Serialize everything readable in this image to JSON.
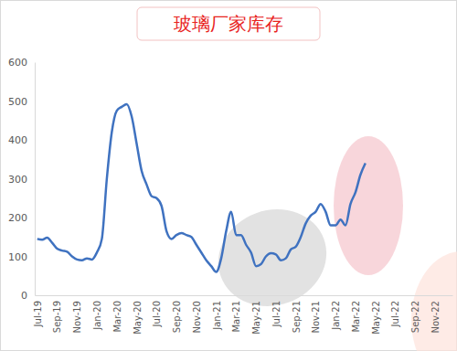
{
  "chart_data": {
    "type": "line",
    "title": "玻璃厂家库存",
    "categories": [
      "Jul-19",
      null,
      null,
      null,
      "Sep-19",
      null,
      null,
      null,
      "Nov-19",
      null,
      null,
      null,
      "Jan-20",
      null,
      null,
      null,
      "Mar-20",
      null,
      null,
      null,
      "May-20",
      null,
      null,
      null,
      "Jul-20",
      null,
      null,
      null,
      "Sep-20",
      null,
      null,
      null,
      "Nov-20",
      null,
      null,
      null,
      "Jan-21",
      null,
      null,
      null,
      "Mar-21",
      null,
      null,
      null,
      "May-21",
      null,
      null,
      null,
      "Jul-21",
      null,
      null,
      null,
      "Sep-21",
      null,
      null,
      null,
      "Nov-21",
      null,
      null,
      null,
      "Jan-22",
      null,
      null,
      null,
      "Mar-22",
      null,
      null,
      null,
      "May-22",
      null,
      null,
      null,
      "Jul-22",
      null,
      null,
      null,
      "Sep-22",
      null,
      null,
      null,
      "Nov-22",
      null,
      null,
      null
    ],
    "values": [
      145,
      143,
      148,
      135,
      120,
      115,
      112,
      100,
      92,
      90,
      95,
      92,
      110,
      145,
      300,
      420,
      475,
      485,
      492,
      460,
      390,
      320,
      285,
      255,
      250,
      230,
      165,
      145,
      155,
      160,
      155,
      150,
      130,
      110,
      90,
      75,
      60,
      95,
      165,
      215,
      155,
      155,
      130,
      110,
      75,
      80,
      100,
      108,
      105,
      90,
      95,
      118,
      125,
      150,
      185,
      205,
      215,
      235,
      215,
      180,
      180,
      195,
      180,
      235,
      265,
      310,
      340,
      null,
      null,
      null,
      null,
      null,
      null,
      null,
      null,
      null,
      null,
      null,
      null,
      null,
      null,
      null,
      null,
      null
    ],
    "color": "#3f72c0",
    "ylim": [
      0,
      600
    ],
    "yticks": [
      0,
      100,
      200,
      300,
      400,
      500,
      600
    ],
    "grid": false
  }
}
